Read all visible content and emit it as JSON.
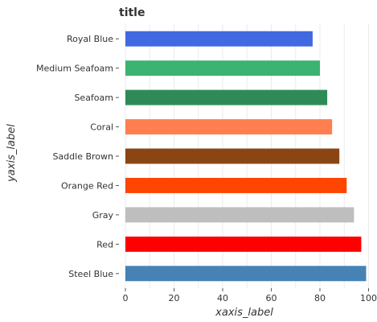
{
  "chart_data": {
    "type": "bar",
    "orientation": "horizontal",
    "title": "title",
    "xlabel": "xaxis_label",
    "ylabel": "yaxis_label",
    "xlim": [
      0,
      100
    ],
    "x_ticks": [
      0,
      20,
      40,
      60,
      80,
      100
    ],
    "grid": true,
    "categories": [
      "Royal Blue",
      "Medium Seafoam",
      "Seafoam",
      "Coral",
      "Saddle Brown",
      "Orange Red",
      "Gray",
      "Red",
      "Steel Blue"
    ],
    "values": [
      77,
      80,
      83,
      85,
      88,
      91,
      94,
      97,
      99
    ],
    "colors": [
      "#4169e1",
      "#3cb371",
      "#2e8b57",
      "#ff7f50",
      "#8b4513",
      "#ff4500",
      "#bebebe",
      "#ff0000",
      "#4682b4"
    ]
  }
}
